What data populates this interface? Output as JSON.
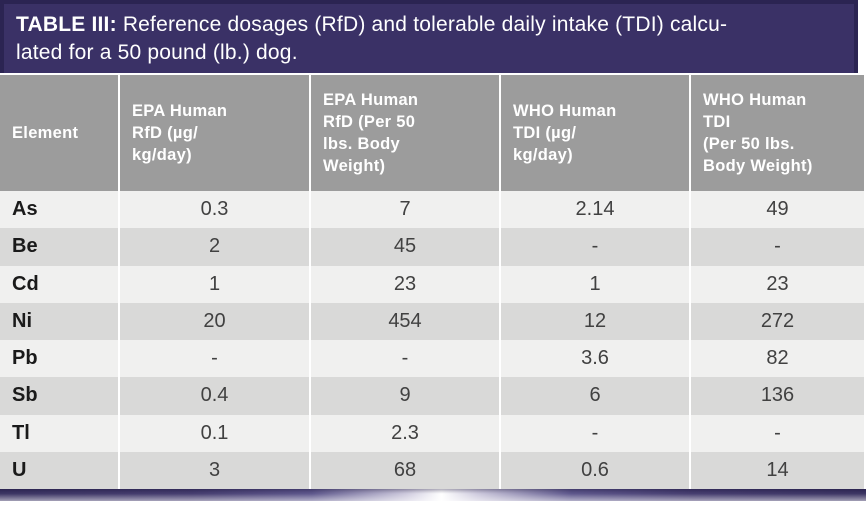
{
  "table": {
    "title": {
      "label": "TABLE III:",
      "text": "Reference dosages (RfD) and tolerable daily intake (TDI) calcu-\nlated for a 50 pound (lb.) dog."
    },
    "columns": [
      {
        "label": "Element"
      },
      {
        "label": "EPA Human\nRfD (µg/\nkg/day)"
      },
      {
        "label": "EPA Human\nRfD (Per 50\nlbs. Body\nWeight)"
      },
      {
        "label": "WHO Human\nTDI (µg/\nkg/day)"
      },
      {
        "label": "WHO Human\nTDI\n(Per 50 lbs.\nBody Weight)"
      }
    ],
    "rows": [
      {
        "element": "As",
        "values": [
          "0.3",
          "7",
          "2.14",
          "49"
        ]
      },
      {
        "element": "Be",
        "values": [
          "2",
          "45",
          "-",
          "-"
        ]
      },
      {
        "element": "Cd",
        "values": [
          "1",
          "23",
          "1",
          "23"
        ]
      },
      {
        "element": "Ni",
        "values": [
          "20",
          "454",
          "12",
          "272"
        ]
      },
      {
        "element": "Pb",
        "values": [
          "-",
          "-",
          "3.6",
          "82"
        ]
      },
      {
        "element": "Sb",
        "values": [
          "0.4",
          "9",
          "6",
          "136"
        ]
      },
      {
        "element": "Tl",
        "values": [
          "0.1",
          "2.3",
          "-",
          "-"
        ]
      },
      {
        "element": "U",
        "values": [
          "3",
          "68",
          "0.6",
          "14"
        ]
      }
    ]
  },
  "colors": {
    "title_bar": "#3a3166",
    "title_border": "#2b2452",
    "header_gray": "#9c9c9c",
    "row_light": "#f0f0ef",
    "row_dark": "#d9d9d8",
    "accent_purple": "#332c5c"
  }
}
